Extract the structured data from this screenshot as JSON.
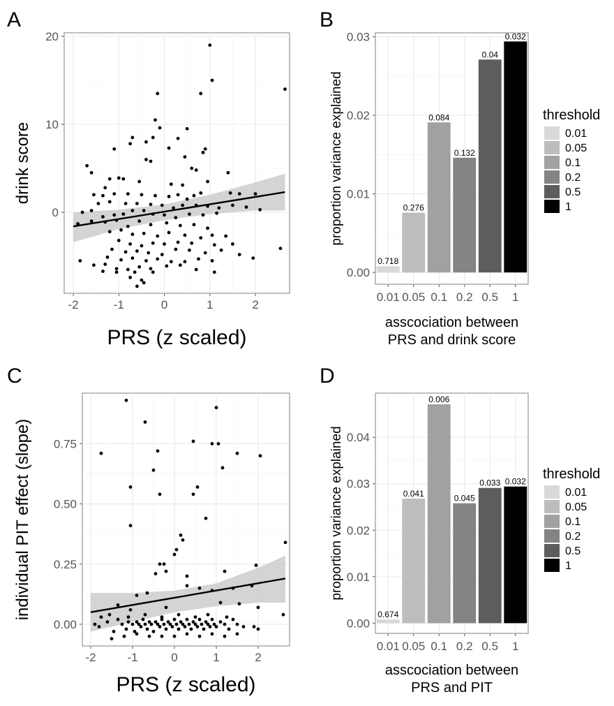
{
  "panel_letters": [
    "A",
    "B",
    "C",
    "D"
  ],
  "legend_title": "threshold",
  "legend_items": [
    {
      "label": "0.01",
      "color": "#d9d9d9"
    },
    {
      "label": "0.05",
      "color": "#bdbdbd"
    },
    {
      "label": "0.1",
      "color": "#a1a1a1"
    },
    {
      "label": "0.2",
      "color": "#848484"
    },
    {
      "label": "0.5",
      "color": "#5d5d5d"
    },
    {
      "label": "1",
      "color": "#000000"
    }
  ],
  "chart_data": [
    {
      "id": "A",
      "type": "scatter",
      "xlabel": "PRS (z scaled)",
      "ylabel": "drink score",
      "xlim": [
        -2.2,
        2.75
      ],
      "ylim": [
        -9.2,
        20.4
      ],
      "xticks": [
        -2,
        -1,
        0,
        1,
        2
      ],
      "xtick_labels": [
        "-2",
        "-1",
        "0",
        "1",
        "2"
      ],
      "yticks": [
        0,
        10,
        20
      ],
      "ytick_labels": [
        "0",
        "10",
        "20"
      ],
      "trend": {
        "x": [
          -2.0,
          2.65
        ],
        "y": [
          -1.6,
          2.3
        ]
      },
      "band": {
        "x": [
          -2.0,
          -1.0,
          0.0,
          1.0,
          2.0,
          2.65
        ],
        "upper": [
          0.0,
          0.3,
          0.9,
          2.0,
          3.4,
          4.4
        ],
        "lower": [
          -3.4,
          -1.9,
          -0.9,
          -0.2,
          0.2,
          0.2
        ]
      },
      "points": [
        [
          1.0,
          19.0
        ],
        [
          1.05,
          15.0
        ],
        [
          2.65,
          14.0
        ],
        [
          0.8,
          13.5
        ],
        [
          -0.15,
          13.5
        ],
        [
          -0.2,
          10.5
        ],
        [
          -0.1,
          9.6
        ],
        [
          0.5,
          9.5
        ],
        [
          0.3,
          8.4
        ],
        [
          -0.25,
          8.5
        ],
        [
          -0.7,
          8.5
        ],
        [
          -0.75,
          7.8
        ],
        [
          -0.4,
          8.0
        ],
        [
          -1.1,
          7.2
        ],
        [
          0.1,
          7.3
        ],
        [
          0.45,
          6.3
        ],
        [
          0.9,
          7.2
        ],
        [
          0.85,
          6.8
        ],
        [
          -0.4,
          6.0
        ],
        [
          -0.3,
          5.8
        ],
        [
          0.6,
          5.0
        ],
        [
          0.7,
          4.8
        ],
        [
          -1.7,
          5.3
        ],
        [
          -1.6,
          4.5
        ],
        [
          1.4,
          4.5
        ],
        [
          -1.0,
          3.9
        ],
        [
          -1.2,
          3.8
        ],
        [
          -0.9,
          3.8
        ],
        [
          -0.55,
          3.5
        ],
        [
          0.15,
          3.2
        ],
        [
          0.4,
          3.1
        ],
        [
          0.95,
          3.5
        ],
        [
          -1.3,
          2.8
        ],
        [
          -1.55,
          2.0
        ],
        [
          -1.35,
          1.9
        ],
        [
          -1.1,
          2.1
        ],
        [
          -0.8,
          2.1
        ],
        [
          -0.5,
          2.0
        ],
        [
          -0.2,
          1.9
        ],
        [
          0.1,
          1.8
        ],
        [
          0.3,
          2.0
        ],
        [
          0.5,
          1.5
        ],
        [
          0.65,
          1.9
        ],
        [
          0.8,
          2.2
        ],
        [
          1.45,
          2.2
        ],
        [
          1.65,
          2.1
        ],
        [
          2.0,
          2.1
        ],
        [
          -1.45,
          1.0
        ],
        [
          -1.2,
          1.2
        ],
        [
          -0.85,
          1.0
        ],
        [
          -0.6,
          1.0
        ],
        [
          -0.3,
          0.9
        ],
        [
          -0.05,
          0.8
        ],
        [
          0.2,
          0.5
        ],
        [
          0.4,
          0.8
        ],
        [
          0.7,
          0.8
        ],
        [
          0.95,
          0.7
        ],
        [
          1.2,
          0.5
        ],
        [
          1.5,
          0.8
        ],
        [
          1.8,
          0.6
        ],
        [
          2.1,
          0.3
        ],
        [
          -1.8,
          0.0
        ],
        [
          -1.6,
          0.2
        ],
        [
          -1.35,
          -0.5
        ],
        [
          -1.1,
          -0.3
        ],
        [
          -0.9,
          -0.2
        ],
        [
          -0.7,
          0.2
        ],
        [
          -0.45,
          0.2
        ],
        [
          -0.25,
          -0.2
        ],
        [
          0.0,
          -0.3
        ],
        [
          0.25,
          -0.6
        ],
        [
          0.55,
          -0.2
        ],
        [
          0.85,
          -0.3
        ],
        [
          1.15,
          -0.1
        ],
        [
          -1.9,
          -1.3
        ],
        [
          -1.6,
          -1.0
        ],
        [
          -1.3,
          -1.1
        ],
        [
          -1.05,
          -0.9
        ],
        [
          -0.8,
          -1.6
        ],
        [
          -0.55,
          -1.0
        ],
        [
          -0.3,
          -1.4
        ],
        [
          0.05,
          -1.2
        ],
        [
          0.35,
          -1.5
        ],
        [
          0.65,
          -1.4
        ],
        [
          0.95,
          -1.8
        ],
        [
          -1.2,
          -2.2
        ],
        [
          -0.95,
          -2.0
        ],
        [
          -0.7,
          -2.5
        ],
        [
          -0.45,
          -2.4
        ],
        [
          -0.15,
          -2.7
        ],
        [
          0.1,
          -2.3
        ],
        [
          0.45,
          -2.6
        ],
        [
          0.8,
          -2.9
        ],
        [
          1.05,
          -2.6
        ],
        [
          1.35,
          -2.7
        ],
        [
          -1.0,
          -3.2
        ],
        [
          -0.75,
          -3.6
        ],
        [
          -0.5,
          -3.8
        ],
        [
          -0.25,
          -3.5
        ],
        [
          0.0,
          -3.6
        ],
        [
          0.3,
          -3.4
        ],
        [
          0.6,
          -3.5
        ],
        [
          1.1,
          -3.7
        ],
        [
          1.5,
          -3.6
        ],
        [
          -1.15,
          -4.2
        ],
        [
          -0.85,
          -4.5
        ],
        [
          -0.6,
          -4.4
        ],
        [
          -0.35,
          -4.6
        ],
        [
          -0.05,
          -4.8
        ],
        [
          0.25,
          -4.2
        ],
        [
          0.55,
          -4.3
        ],
        [
          0.9,
          -4.6
        ],
        [
          1.25,
          -4.3
        ],
        [
          1.65,
          -4.8
        ],
        [
          2.55,
          -4.1
        ],
        [
          -1.25,
          -5.1
        ],
        [
          -0.95,
          -5.4
        ],
        [
          -0.7,
          -5.2
        ],
        [
          -0.4,
          -5.5
        ],
        [
          -0.15,
          -5.3
        ],
        [
          0.15,
          -5.6
        ],
        [
          0.45,
          -5.6
        ],
        [
          0.75,
          -5.3
        ],
        [
          1.05,
          -5.5
        ],
        [
          1.95,
          -5.2
        ],
        [
          -1.85,
          -5.5
        ],
        [
          -1.55,
          -6.0
        ],
        [
          -1.3,
          -5.9
        ],
        [
          -1.05,
          -6.4
        ],
        [
          -0.8,
          -6.5
        ],
        [
          -0.55,
          -6.2
        ],
        [
          -0.3,
          -6.4
        ],
        [
          0.05,
          -6.1
        ],
        [
          0.35,
          -6.0
        ],
        [
          0.7,
          -6.5
        ],
        [
          -1.35,
          -6.7
        ],
        [
          -1.05,
          -6.8
        ],
        [
          -0.65,
          -6.8
        ],
        [
          -0.25,
          -6.8
        ],
        [
          1.1,
          -6.8
        ],
        [
          -0.75,
          -7.4
        ],
        [
          -0.5,
          -7.7
        ],
        [
          -0.6,
          -8.4
        ],
        [
          -0.45,
          -8.0
        ]
      ]
    },
    {
      "id": "B",
      "type": "bar",
      "xlabel": "asscociation between\nPRS and drink score",
      "ylabel": "proportion variance explained",
      "categories": [
        "0.01",
        "0.05",
        "0.1",
        "0.2",
        "0.5",
        "1"
      ],
      "values": [
        0.0008,
        0.0076,
        0.0191,
        0.0146,
        0.0271,
        0.0294
      ],
      "bar_labels": [
        "0.718",
        "0.276",
        "0.084",
        "0.132",
        "0.04",
        "0.032"
      ],
      "ylim": [
        -0.0015,
        0.0305
      ],
      "yticks": [
        0.0,
        0.01,
        0.02,
        0.03
      ],
      "ytick_labels": [
        "0.00",
        "0.01",
        "0.02",
        "0.03"
      ]
    },
    {
      "id": "C",
      "type": "scatter",
      "xlabel": "PRS (z scaled)",
      "ylabel": "individual PIT effect (slope)",
      "xlim": [
        -2.2,
        2.75
      ],
      "ylim": [
        -0.09,
        0.96
      ],
      "xticks": [
        -2,
        -1,
        0,
        1,
        2
      ],
      "xtick_labels": [
        "-2",
        "-1",
        "0",
        "1",
        "2"
      ],
      "yticks": [
        0.0,
        0.25,
        0.5,
        0.75
      ],
      "ytick_labels": [
        "0.00",
        "0.25",
        "0.50",
        "0.75"
      ],
      "trend": {
        "x": [
          -2.0,
          2.65
        ],
        "y": [
          0.05,
          0.19
        ]
      },
      "band": {
        "x": [
          -2.0,
          -1.0,
          0.0,
          1.0,
          2.0,
          2.65
        ],
        "upper": [
          0.13,
          0.13,
          0.14,
          0.17,
          0.235,
          0.285
        ],
        "lower": [
          -0.03,
          0.01,
          0.05,
          0.075,
          0.09,
          0.09
        ]
      },
      "points": [
        [
          -1.15,
          0.93
        ],
        [
          1.0,
          0.9
        ],
        [
          -0.7,
          0.84
        ],
        [
          -1.75,
          0.71
        ],
        [
          -0.4,
          0.72
        ],
        [
          0.45,
          0.76
        ],
        [
          0.9,
          0.75
        ],
        [
          1.05,
          0.75
        ],
        [
          1.5,
          0.71
        ],
        [
          2.05,
          0.7
        ],
        [
          1.15,
          0.65
        ],
        [
          -0.5,
          0.64
        ],
        [
          -1.05,
          0.57
        ],
        [
          0.55,
          0.57
        ],
        [
          -0.35,
          0.54
        ],
        [
          0.45,
          0.54
        ],
        [
          -1.05,
          0.41
        ],
        [
          0.75,
          0.44
        ],
        [
          0.15,
          0.37
        ],
        [
          0.2,
          0.35
        ],
        [
          0.05,
          0.31
        ],
        [
          0.0,
          0.29
        ],
        [
          -0.35,
          0.25
        ],
        [
          -0.25,
          0.25
        ],
        [
          -0.2,
          0.22
        ],
        [
          -0.45,
          0.21
        ],
        [
          1.2,
          0.22
        ],
        [
          1.95,
          0.245
        ],
        [
          2.65,
          0.34
        ],
        [
          0.3,
          0.2
        ],
        [
          0.6,
          0.15
        ],
        [
          0.9,
          0.14
        ],
        [
          1.4,
          0.15
        ],
        [
          1.85,
          0.16
        ],
        [
          -0.9,
          0.12
        ],
        [
          -0.65,
          0.13
        ],
        [
          0.3,
          0.16
        ],
        [
          1.1,
          0.09
        ],
        [
          1.55,
          0.085
        ],
        [
          2.0,
          0.07
        ],
        [
          -1.35,
          0.08
        ],
        [
          -1.05,
          0.06
        ],
        [
          -0.2,
          0.07
        ],
        [
          -1.55,
          0.04
        ],
        [
          -1.75,
          0.03
        ],
        [
          -1.9,
          0.0
        ],
        [
          -1.8,
          -0.01
        ],
        [
          -1.6,
          0.01
        ],
        [
          -1.45,
          -0.03
        ],
        [
          -1.35,
          0.02
        ],
        [
          -1.25,
          0.0
        ],
        [
          -1.15,
          -0.02
        ],
        [
          -1.1,
          0.01
        ],
        [
          -1.0,
          0.0
        ],
        [
          -0.95,
          -0.03
        ],
        [
          -0.9,
          0.01
        ],
        [
          -0.85,
          0.0
        ],
        [
          -0.8,
          -0.01
        ],
        [
          -0.75,
          0.02
        ],
        [
          -0.7,
          0.0
        ],
        [
          -0.65,
          -0.02
        ],
        [
          -0.6,
          0.01
        ],
        [
          -0.55,
          0.0
        ],
        [
          -0.5,
          -0.03
        ],
        [
          -0.45,
          0.01
        ],
        [
          -0.4,
          0.0
        ],
        [
          -0.35,
          -0.01
        ],
        [
          -0.3,
          0.02
        ],
        [
          -0.25,
          0.0
        ],
        [
          -0.2,
          -0.02
        ],
        [
          -0.15,
          0.01
        ],
        [
          -0.1,
          0.0
        ],
        [
          -0.05,
          -0.01
        ],
        [
          0.0,
          0.02
        ],
        [
          0.05,
          0.0
        ],
        [
          0.1,
          -0.02
        ],
        [
          0.15,
          0.01
        ],
        [
          0.2,
          0.0
        ],
        [
          0.25,
          -0.01
        ],
        [
          0.3,
          0.02
        ],
        [
          0.35,
          0.0
        ],
        [
          0.4,
          -0.02
        ],
        [
          0.45,
          0.01
        ],
        [
          0.5,
          0.0
        ],
        [
          0.55,
          -0.01
        ],
        [
          0.6,
          0.02
        ],
        [
          0.65,
          0.0
        ],
        [
          0.7,
          -0.02
        ],
        [
          0.75,
          0.01
        ],
        [
          0.8,
          0.0
        ],
        [
          0.85,
          -0.01
        ],
        [
          0.9,
          0.02
        ],
        [
          0.95,
          0.0
        ],
        [
          1.0,
          -0.01
        ],
        [
          1.1,
          0.01
        ],
        [
          1.2,
          0.0
        ],
        [
          1.3,
          -0.02
        ],
        [
          1.4,
          0.02
        ],
        [
          1.5,
          0.0
        ],
        [
          1.65,
          -0.01
        ],
        [
          1.9,
          -0.01
        ],
        [
          2.0,
          -0.02
        ],
        [
          2.6,
          0.04
        ],
        [
          -1.2,
          -0.05
        ],
        [
          -0.9,
          -0.04
        ],
        [
          -0.6,
          -0.05
        ],
        [
          -0.3,
          -0.05
        ],
        [
          0.0,
          -0.05
        ],
        [
          0.3,
          -0.04
        ],
        [
          0.6,
          -0.05
        ],
        [
          0.9,
          -0.04
        ],
        [
          1.2,
          -0.05
        ],
        [
          1.5,
          -0.04
        ],
        [
          -1.5,
          -0.06
        ],
        [
          -1.1,
          0.03
        ],
        [
          -0.7,
          0.04
        ],
        [
          -0.3,
          0.03
        ],
        [
          0.1,
          0.04
        ],
        [
          0.5,
          0.03
        ],
        [
          0.8,
          0.04
        ],
        [
          1.25,
          0.03
        ]
      ]
    },
    {
      "id": "D",
      "type": "bar",
      "xlabel": "asscociation between\nPRS and PIT",
      "ylabel": "proportion variance explained",
      "categories": [
        "0.01",
        "0.05",
        "0.1",
        "0.2",
        "0.5",
        "1"
      ],
      "values": [
        0.0008,
        0.0268,
        0.0471,
        0.0258,
        0.0291,
        0.0294
      ],
      "bar_labels": [
        "0.674",
        "0.041",
        "0.006",
        "0.045",
        "0.033",
        "0.032"
      ],
      "ylim": [
        -0.0022,
        0.0495
      ],
      "yticks": [
        0.0,
        0.01,
        0.02,
        0.03,
        0.04
      ],
      "ytick_labels": [
        "0.00",
        "0.01",
        "0.02",
        "0.03",
        "0.04"
      ]
    }
  ]
}
